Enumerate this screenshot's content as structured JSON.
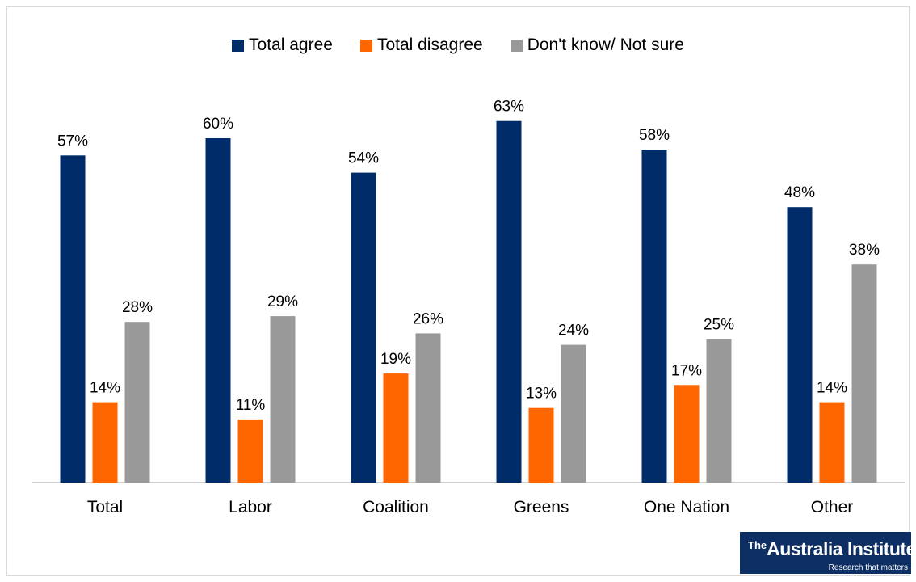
{
  "chart_data": {
    "type": "bar",
    "categories": [
      "Total",
      "Labor",
      "Coalition",
      "Greens",
      "One Nation",
      "Other"
    ],
    "series": [
      {
        "name": "Total agree",
        "color": "#002d6a",
        "values": [
          57,
          60,
          54,
          63,
          58,
          48
        ]
      },
      {
        "name": "Total disagree",
        "color": "#ff6600",
        "values": [
          14,
          11,
          19,
          13,
          17,
          14
        ]
      },
      {
        "name": "Don't know/ Not sure",
        "color": "#999999",
        "values": [
          28,
          29,
          26,
          24,
          25,
          38
        ]
      }
    ],
    "value_suffix": "%",
    "ylim": [
      0,
      70
    ],
    "legend_position": "top-center",
    "grid": false
  },
  "logo": {
    "prefix": "The",
    "name": "Australia Institute",
    "tagline": "Research that matters"
  }
}
